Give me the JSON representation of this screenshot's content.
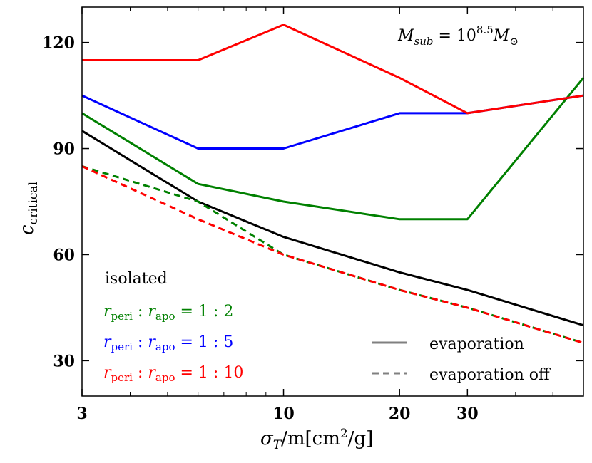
{
  "chart_data": {
    "type": "line",
    "title": "",
    "annotation": "M_sub = 10^8.5 M_⊙",
    "annotation_parts": {
      "m": "M",
      "sub": "sub",
      "eq": " = 10",
      "exp": "8.5",
      "m2": "M",
      "sun": "⊙"
    },
    "xlabel": "σT/m[cm2/g]",
    "xlabel_parts": {
      "sigma": "σ",
      "T": "T",
      "rest": "/m[cm",
      "sq": "2",
      "end": "/g]"
    },
    "ylabel": "c_critical",
    "ylabel_parts": {
      "c": "c",
      "sub": "critical"
    },
    "xscale": "log",
    "xlim": [
      3,
      60
    ],
    "ylim": [
      20,
      130
    ],
    "xticks": [
      3,
      10,
      20,
      30
    ],
    "yticks": [
      30,
      60,
      90,
      120
    ],
    "colors": {
      "isolated": "#000000",
      "ratio_1_2": "#008000",
      "ratio_1_5": "#0000ff",
      "ratio_1_10": "#ff0000"
    },
    "series": [
      {
        "name": "isolated",
        "color": "#000000",
        "style": "solid",
        "x": [
          3,
          6,
          10,
          20,
          30,
          60
        ],
        "values": [
          95,
          75,
          65,
          55,
          50,
          40
        ]
      },
      {
        "name": "r_peri : r_apo = 1 : 2",
        "color": "#008000",
        "style": "solid",
        "x": [
          3,
          6,
          10,
          20,
          30,
          60
        ],
        "values": [
          100,
          80,
          75,
          70,
          70,
          110
        ]
      },
      {
        "name": "r_peri : r_apo = 1 : 5",
        "color": "#0000ff",
        "style": "solid",
        "x": [
          3,
          6,
          10,
          20,
          30,
          60
        ],
        "values": [
          105,
          90,
          90,
          100,
          100,
          105
        ]
      },
      {
        "name": "r_peri : r_apo = 1 : 10",
        "color": "#ff0000",
        "style": "solid",
        "x": [
          3,
          6,
          10,
          20,
          30,
          60
        ],
        "values": [
          115,
          115,
          125,
          110,
          100,
          105
        ]
      },
      {
        "name": "r_peri : r_apo = 1 : 2 (evaporation off)",
        "color": "#008000",
        "style": "dashed",
        "x": [
          3,
          6,
          10,
          20,
          30,
          60
        ],
        "values": [
          85,
          75,
          60,
          50,
          45,
          35
        ]
      },
      {
        "name": "r_peri : r_apo = 1 : 10 (evaporation off)",
        "color": "#ff0000",
        "style": "dashed",
        "x": [
          3,
          6,
          10,
          20,
          30,
          60
        ],
        "values": [
          85,
          70,
          60,
          50,
          45,
          35
        ]
      }
    ],
    "color_legend": [
      {
        "label": "isolated",
        "color": "#000000"
      },
      {
        "label": "r_peri : r_apo = 1 : 2",
        "color": "#008000",
        "ratio": "1 : 2"
      },
      {
        "label": "r_peri : r_apo = 1 : 5",
        "color": "#0000ff",
        "ratio": "1 : 5"
      },
      {
        "label": "r_peri : r_apo = 1 : 10",
        "color": "#ff0000",
        "ratio": "1 : 10"
      }
    ],
    "style_legend": [
      {
        "label": "evaporation",
        "style": "solid",
        "color": "#808080"
      },
      {
        "label": "evaporation off",
        "style": "dashed",
        "color": "#808080"
      }
    ],
    "legend_position": "bottom",
    "grid": false
  }
}
